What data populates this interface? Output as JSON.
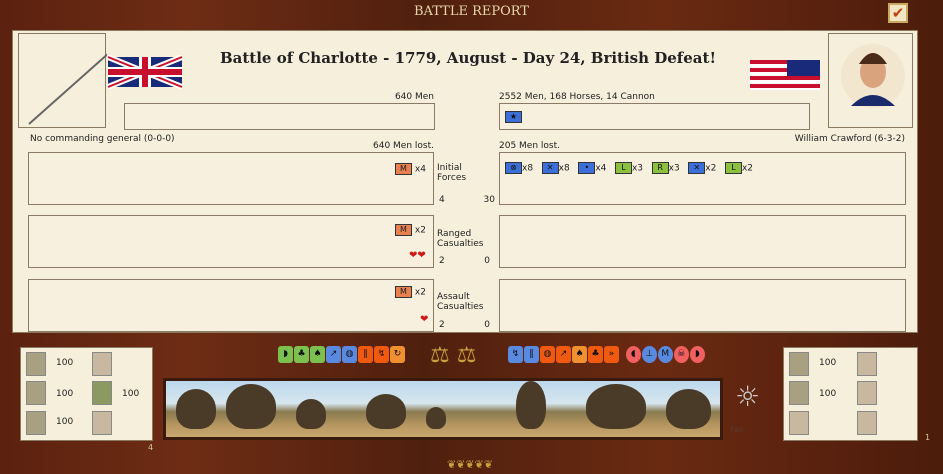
{
  "window": {
    "title": "BATTLE REPORT",
    "confirm_icon": "checkmark-icon"
  },
  "battle": {
    "title": "Battle of Charlotte - 1779, August - Day 24, British Defeat!"
  },
  "british": {
    "strength": "640 Men",
    "general": "No commanding general (0-0-0)",
    "lost": "640 Men lost.",
    "initial": [
      {
        "type": "M",
        "color": "#e88050",
        "count": "x4"
      }
    ],
    "ranged": [
      {
        "type": "M",
        "color": "#e88050",
        "count": "x2"
      }
    ],
    "assault": [
      {
        "type": "M",
        "color": "#e88050",
        "count": "x2"
      }
    ],
    "initial_num": "4",
    "ranged_num": "2",
    "assault_num": "2",
    "stats": [
      "100",
      "100",
      "100"
    ]
  },
  "american": {
    "strength": "2552 Men, 168 Horses, 14 Cannon",
    "general": "William Crawford (6-3-2)",
    "lost": "205 Men lost.",
    "initial": [
      {
        "type": "⊗",
        "color": "#3d6fd8",
        "count": "x8"
      },
      {
        "type": "✕",
        "color": "#3d6fd8",
        "count": "x8"
      },
      {
        "type": "•",
        "color": "#3d6fd8",
        "count": "x4"
      },
      {
        "type": "L",
        "color": "#8ec040",
        "count": "x3"
      },
      {
        "type": "R",
        "color": "#8ec040",
        "count": "x3"
      },
      {
        "type": "✕",
        "color": "#3d6fd8",
        "count": "x2"
      },
      {
        "type": "L",
        "color": "#8ec040",
        "count": "x2"
      }
    ],
    "initial_num": "30",
    "ranged_num": "0",
    "assault_num": "0",
    "stats": [
      "100",
      "100"
    ]
  },
  "labels": {
    "initial": "Initial Forces",
    "ranged": "Ranged Casualties",
    "assault": "Assault Casualties"
  },
  "weather": "Fair",
  "left_counter": "4",
  "right_counter": "1"
}
